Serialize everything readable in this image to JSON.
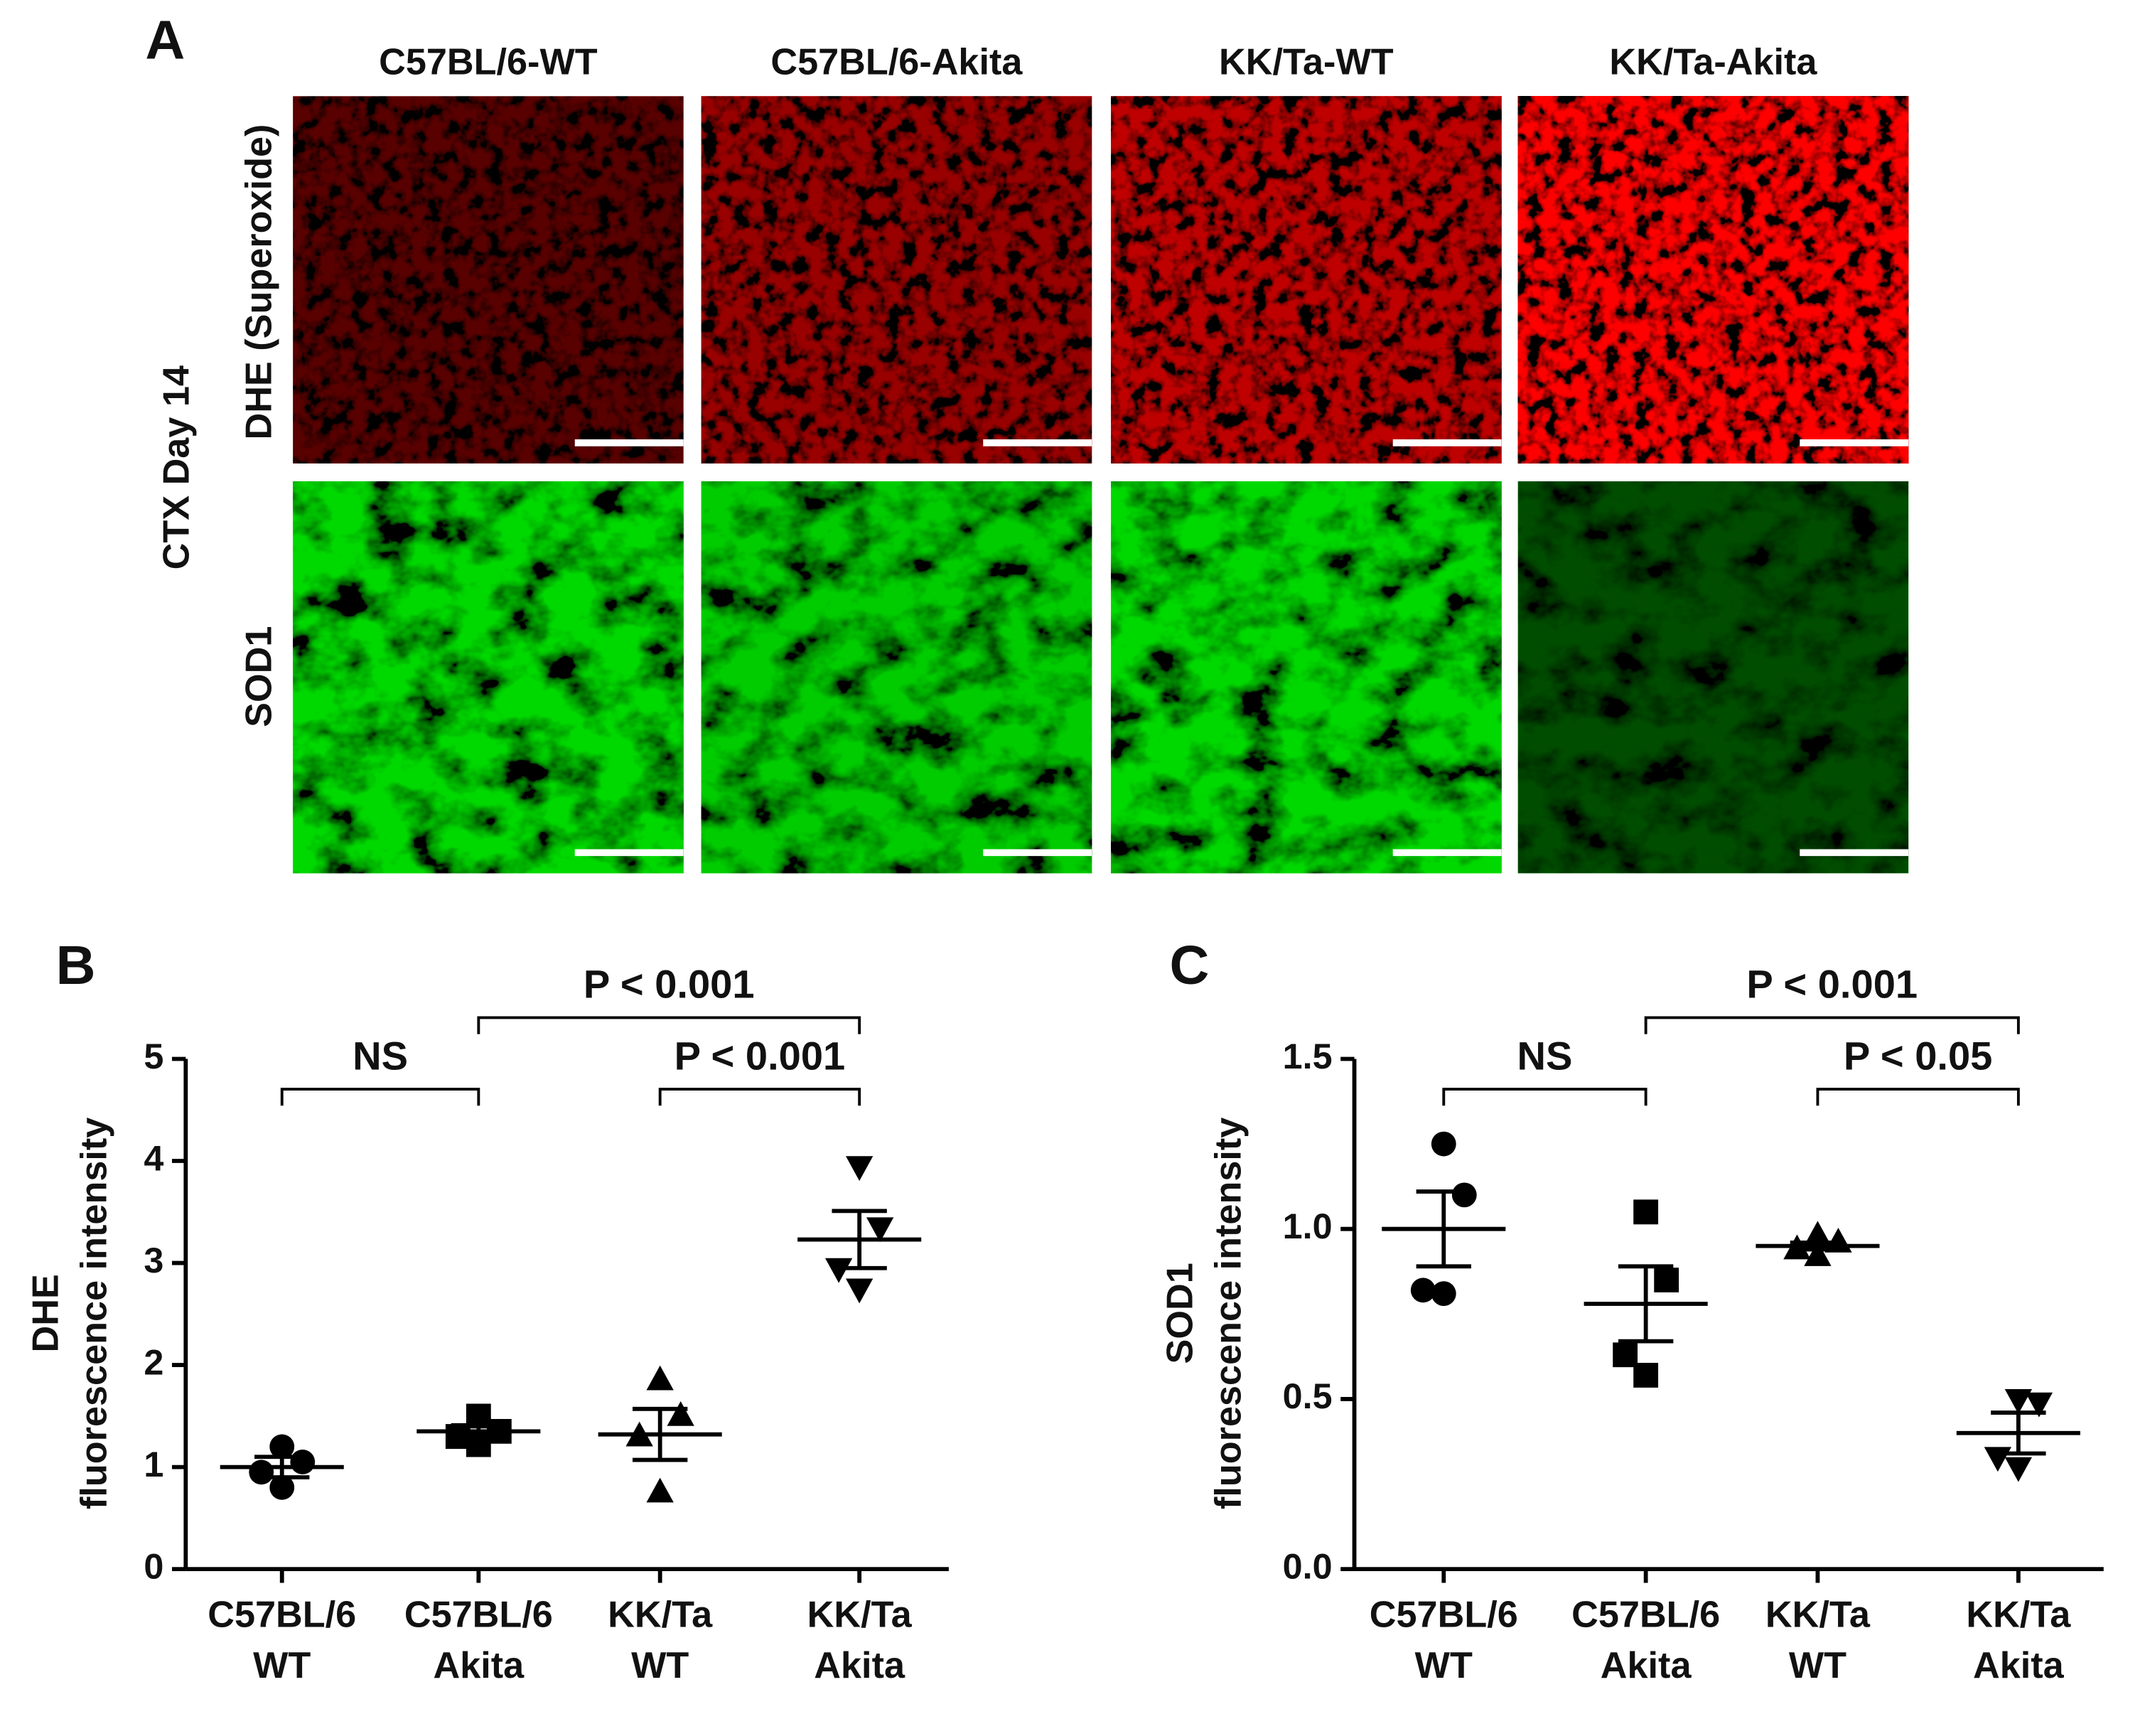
{
  "panel_a": {
    "label": "A",
    "columns": [
      "C57BL/6-WT",
      "C57BL/6-Akita",
      "KK/Ta-WT",
      "KK/Ta-Akita"
    ],
    "rows": [
      "DHE (Superoxide)",
      "SOD1"
    ],
    "side_label": "CTX Day 14"
  },
  "chart_data": [
    {
      "type": "scatter",
      "panel": "B",
      "y_label": [
        "DHE",
        "fluorescence intensity"
      ],
      "categories": [
        [
          "C57BL/6",
          "WT"
        ],
        [
          "C57BL/6",
          "Akita"
        ],
        [
          "KK/Ta",
          "WT"
        ],
        [
          "KK/Ta",
          "Akita"
        ]
      ],
      "ylim": [
        0,
        5
      ],
      "yticks": [
        0,
        1,
        2,
        3,
        4,
        5
      ],
      "series": [
        {
          "marker": "circle",
          "color": "#000000",
          "values": [
            1.2,
            1.05,
            0.95,
            0.8
          ],
          "mean": 1.0,
          "error": 0.1
        },
        {
          "marker": "square",
          "color": "#000000",
          "values": [
            1.5,
            1.35,
            1.3,
            1.22
          ],
          "mean": 1.35,
          "error": 0.06
        },
        {
          "marker": "triangle",
          "color": "#000000",
          "values": [
            1.85,
            1.5,
            1.3,
            0.75
          ],
          "mean": 1.32,
          "error": 0.25
        },
        {
          "marker": "triangle-down",
          "color": "#000000",
          "values": [
            3.95,
            3.35,
            2.95,
            2.75
          ],
          "mean": 3.23,
          "error": 0.28
        }
      ],
      "comparisons": [
        {
          "from": 0,
          "to": 1,
          "label": "NS"
        },
        {
          "from": 2,
          "to": 3,
          "label": "P < 0.001"
        },
        {
          "from": 1,
          "to": 3,
          "label": "P < 0.001"
        }
      ]
    },
    {
      "type": "scatter",
      "panel": "C",
      "y_label": [
        "SOD1",
        "fluorescence intensity"
      ],
      "categories": [
        [
          "C57BL/6",
          "WT"
        ],
        [
          "C57BL/6",
          "Akita"
        ],
        [
          "KK/Ta",
          "WT"
        ],
        [
          "KK/Ta",
          "Akita"
        ]
      ],
      "ylim": [
        0,
        1.5
      ],
      "yticks": [
        {
          "value": 0,
          "label": "0.0"
        },
        0.5,
        {
          "value": 1,
          "label": "1.0"
        },
        1.5
      ],
      "series": [
        {
          "marker": "circle",
          "color": "#000000",
          "values": [
            1.25,
            1.1,
            0.82,
            0.81
          ],
          "mean": 1.0,
          "error": 0.11
        },
        {
          "marker": "square",
          "color": "#000000",
          "values": [
            1.05,
            0.85,
            0.63,
            0.57
          ],
          "mean": 0.78,
          "error": 0.11
        },
        {
          "marker": "triangle",
          "color": "#000000",
          "values": [
            0.98,
            0.96,
            0.94,
            0.92
          ],
          "mean": 0.95,
          "error": 0.01
        },
        {
          "marker": "triangle-down",
          "color": "#000000",
          "values": [
            0.5,
            0.49,
            0.33,
            0.3
          ],
          "mean": 0.4,
          "error": 0.06
        }
      ],
      "comparisons": [
        {
          "from": 0,
          "to": 1,
          "label": "NS"
        },
        {
          "from": 2,
          "to": 3,
          "label": "P < 0.05"
        },
        {
          "from": 1,
          "to": 3,
          "label": "P < 0.001"
        }
      ]
    }
  ]
}
